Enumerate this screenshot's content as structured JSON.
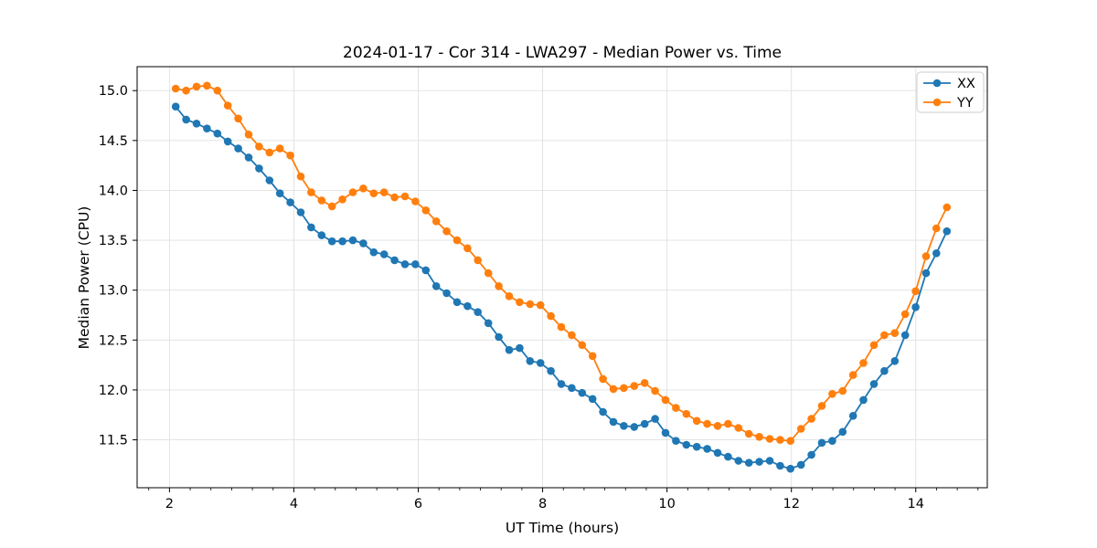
{
  "chart": {
    "title": "2024-01-17 - Cor 314 - LWA297 - Median Power vs. Time",
    "xlabel": "UT Time (hours)",
    "ylabel": "Median Power (CPU)"
  },
  "chart_data": {
    "type": "line",
    "title": "2024-01-17 - Cor 314 - LWA297 - Median Power vs. Time",
    "xlabel": "UT Time (hours)",
    "ylabel": "Median Power (CPU)",
    "xlim": [
      1.48,
      15.15
    ],
    "ylim": [
      11.02,
      15.24
    ],
    "x_ticks": [
      2,
      4,
      6,
      8,
      10,
      12,
      14
    ],
    "x_minor_tick_step": 0.33333,
    "y_ticks": [
      11.5,
      12.0,
      12.5,
      13.0,
      13.5,
      14.0,
      14.5,
      15.0
    ],
    "grid": true,
    "legend_position": "upper right",
    "background_color": "#ffffff",
    "grid_color": "#e0e0e0",
    "spine_color": "#000000",
    "x": [
      2.1,
      2.268,
      2.435,
      2.603,
      2.77,
      2.938,
      3.105,
      3.273,
      3.441,
      3.608,
      3.776,
      3.943,
      4.111,
      4.278,
      4.446,
      4.614,
      4.781,
      4.949,
      5.116,
      5.284,
      5.451,
      5.619,
      5.787,
      5.954,
      6.122,
      6.289,
      6.457,
      6.624,
      6.792,
      6.959,
      7.127,
      7.295,
      7.462,
      7.63,
      7.797,
      7.965,
      8.132,
      8.3,
      8.468,
      8.635,
      8.803,
      8.97,
      9.138,
      9.305,
      9.473,
      9.641,
      9.808,
      9.976,
      10.143,
      10.311,
      10.478,
      10.646,
      10.814,
      10.981,
      11.149,
      11.316,
      11.484,
      11.651,
      11.819,
      11.986,
      12.154,
      12.322,
      12.489,
      12.657,
      12.824,
      12.992,
      13.159,
      13.327,
      13.495,
      13.662,
      13.83,
      13.997,
      14.165,
      14.332,
      14.5
    ],
    "series": [
      {
        "name": "XX",
        "color": "#1f77b4",
        "values": [
          14.84,
          14.71,
          14.67,
          14.62,
          14.57,
          14.49,
          14.42,
          14.33,
          14.22,
          14.1,
          13.97,
          13.88,
          13.78,
          13.63,
          13.55,
          13.49,
          13.49,
          13.5,
          13.47,
          13.38,
          13.36,
          13.3,
          13.26,
          13.26,
          13.2,
          13.04,
          12.97,
          12.88,
          12.84,
          12.78,
          12.67,
          12.53,
          12.4,
          12.42,
          12.29,
          12.27,
          12.19,
          12.06,
          12.02,
          11.97,
          11.91,
          11.78,
          11.68,
          11.64,
          11.63,
          11.66,
          11.71,
          11.57,
          11.49,
          11.45,
          11.43,
          11.41,
          11.37,
          11.33,
          11.29,
          11.27,
          11.28,
          11.29,
          11.24,
          11.21,
          11.25,
          11.35,
          11.47,
          11.49,
          11.58,
          11.74,
          11.9,
          12.06,
          12.19,
          12.29,
          12.55,
          12.83,
          13.17,
          13.37,
          13.59
        ]
      },
      {
        "name": "YY",
        "color": "#ff7f0e",
        "values": [
          15.02,
          15.0,
          15.04,
          15.05,
          15.0,
          14.85,
          14.72,
          14.56,
          14.44,
          14.38,
          14.42,
          14.35,
          14.14,
          13.98,
          13.9,
          13.84,
          13.91,
          13.98,
          14.02,
          13.97,
          13.98,
          13.93,
          13.94,
          13.89,
          13.8,
          13.69,
          13.59,
          13.5,
          13.42,
          13.3,
          13.17,
          13.04,
          12.94,
          12.88,
          12.86,
          12.85,
          12.74,
          12.63,
          12.55,
          12.45,
          12.34,
          12.11,
          12.01,
          12.02,
          12.04,
          12.07,
          11.99,
          11.9,
          11.82,
          11.76,
          11.69,
          11.66,
          11.64,
          11.66,
          11.62,
          11.56,
          11.53,
          11.51,
          11.5,
          11.49,
          11.61,
          11.71,
          11.84,
          11.96,
          11.99,
          12.15,
          12.27,
          12.45,
          12.55,
          12.57,
          12.76,
          12.99,
          13.34,
          13.62,
          13.83
        ]
      }
    ]
  }
}
